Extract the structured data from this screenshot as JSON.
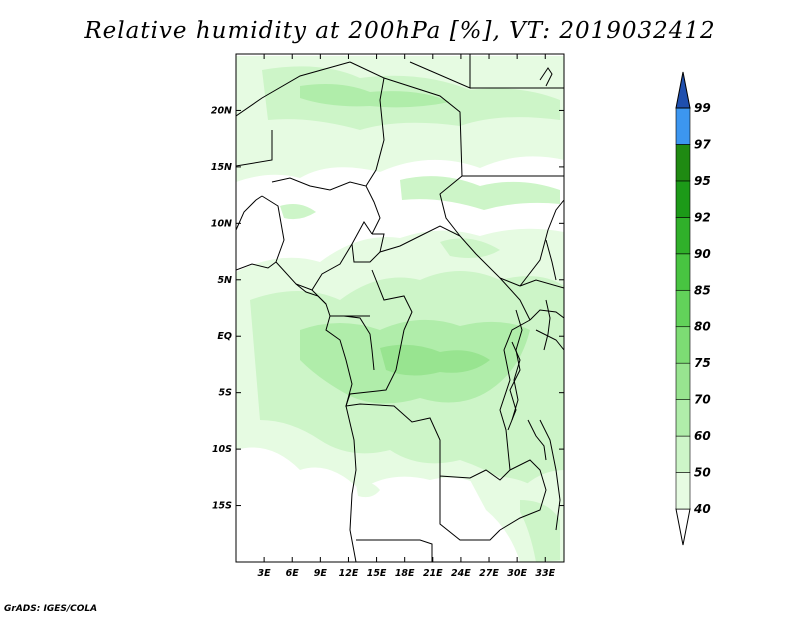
{
  "title": "Relative humidity at 200hPa [%], VT: 2019032412",
  "footer": "GrADS: IGES/COLA",
  "map": {
    "lon_labels": [
      "3E",
      "6E",
      "9E",
      "12E",
      "15E",
      "18E",
      "21E",
      "24E",
      "27E",
      "30E",
      "33E"
    ],
    "lat_labels": [
      "20N",
      "15N",
      "10N",
      "5N",
      "EQ",
      "5S",
      "10S",
      "15S"
    ],
    "lon_values": [
      3,
      6,
      9,
      12,
      15,
      18,
      21,
      24,
      27,
      30,
      33
    ],
    "lat_values": [
      20,
      15,
      10,
      5,
      0,
      -5,
      -10,
      -15
    ],
    "lon_range": [
      0,
      35
    ],
    "lat_range": [
      -20,
      25
    ],
    "variable": "Relative humidity",
    "level": "200hPa",
    "units": "%"
  },
  "colorbar": {
    "levels": [
      "40",
      "50",
      "60",
      "70",
      "75",
      "80",
      "85",
      "90",
      "92",
      "95",
      "97",
      "99"
    ],
    "colors": [
      "#ffffff",
      "#e6fbe2",
      "#cdf5c8",
      "#b0edaa",
      "#98e490",
      "#7ddc74",
      "#62d25a",
      "#48c441",
      "#30b02a",
      "#1c9a18",
      "#1f8a12",
      "#3c96f0",
      "#2a6fd6",
      "#1f4fae"
    ]
  }
}
